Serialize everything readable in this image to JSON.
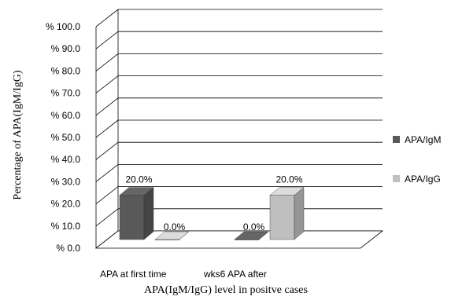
{
  "chart_data": {
    "type": "bar",
    "style": "3d-clustered-column",
    "categories": [
      "APA at first time",
      "wks6 APA after"
    ],
    "series": [
      {
        "name": "APA/IgM",
        "values": [
          20.0,
          0.0
        ],
        "color": "#595959"
      },
      {
        "name": "APA/IgG",
        "values": [
          0.0,
          20.0
        ],
        "color": "#bfbfbf"
      }
    ],
    "data_labels": [
      [
        "20.0%",
        "0.0%"
      ],
      [
        "0.0%",
        "20.0%"
      ]
    ],
    "ylim": [
      0,
      100
    ],
    "ytick_labels": [
      "% 0.0",
      "% 10.0",
      "% 20.0",
      "% 30.0",
      "% 40.0",
      "% 50.0",
      "% 60.0",
      "% 70.0",
      "% 80.0",
      "% 90.0",
      "% 100.0"
    ],
    "xlabel": "APA(IgM/IgG) level in positve cases",
    "ylabel": "Percentage of APA(IgM/IgG)",
    "grid": true,
    "legend_position": "right"
  }
}
